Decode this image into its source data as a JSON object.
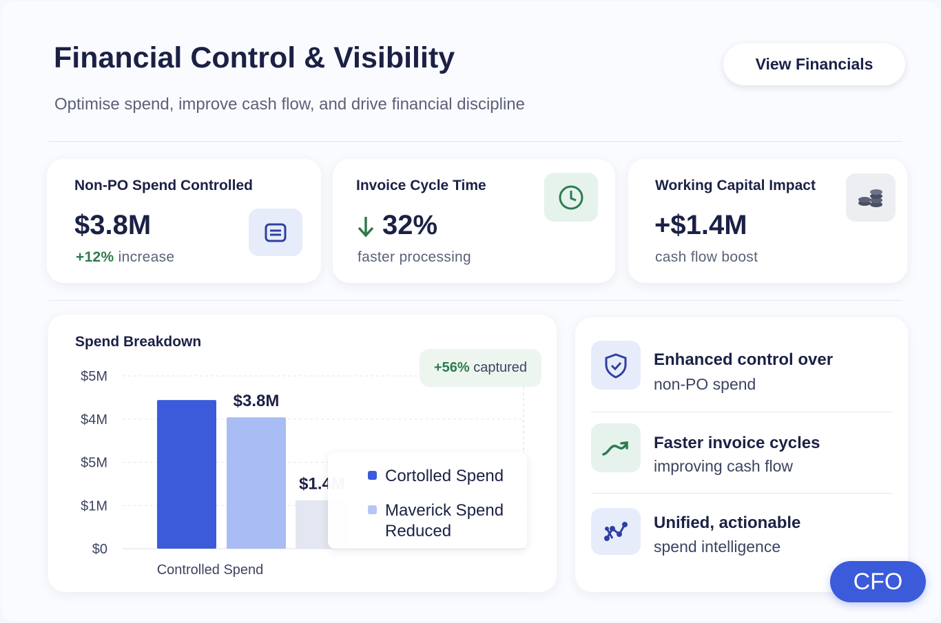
{
  "header": {
    "title": "Financial Control & Visibility",
    "subtitle": "Optimise spend, improve cash flow, and drive financial discipline",
    "button": "View Financials"
  },
  "kpis": [
    {
      "title": "Non-PO Spend Controlled",
      "value": "$3.8M",
      "delta": "+12%",
      "sub": "increase"
    },
    {
      "title": "Invoice Cycle Time",
      "value": "32%",
      "sub": "faster processing"
    },
    {
      "title": "Working Capital Impact",
      "value": "+$1.4M",
      "sub": "cash flow boost"
    }
  ],
  "chart_data": {
    "type": "bar",
    "title": "Spend Breakdown",
    "annotation": {
      "value": "+56%",
      "text": "captured"
    },
    "y_axis_labels": [
      "$5M",
      "$4M",
      "$5M",
      "$1M",
      "$0"
    ],
    "ylim": [
      0,
      5
    ],
    "categories": [
      "Controlled Spend",
      null,
      null
    ],
    "values": [
      4.3,
      3.8,
      1.4
    ],
    "value_labels": [
      null,
      "$3.8M",
      "$1.4M"
    ],
    "colors": [
      "#3b5bdb",
      "#a9bcf3",
      "#e4e7f1"
    ],
    "legend": [
      {
        "name": "Cortolled Spend",
        "color": "#3b5bdb"
      },
      {
        "name": "Maverick Spend Reduced",
        "color": "#b5c6f6"
      }
    ]
  },
  "benefits": [
    {
      "bold": "Enhanced control over",
      "text": "non-PO spend"
    },
    {
      "bold": "Faster invoice cycles",
      "text": "improving cash flow"
    },
    {
      "bold": "Unified, actionable",
      "text": "spend intelligence"
    }
  ],
  "badge": "CFO"
}
